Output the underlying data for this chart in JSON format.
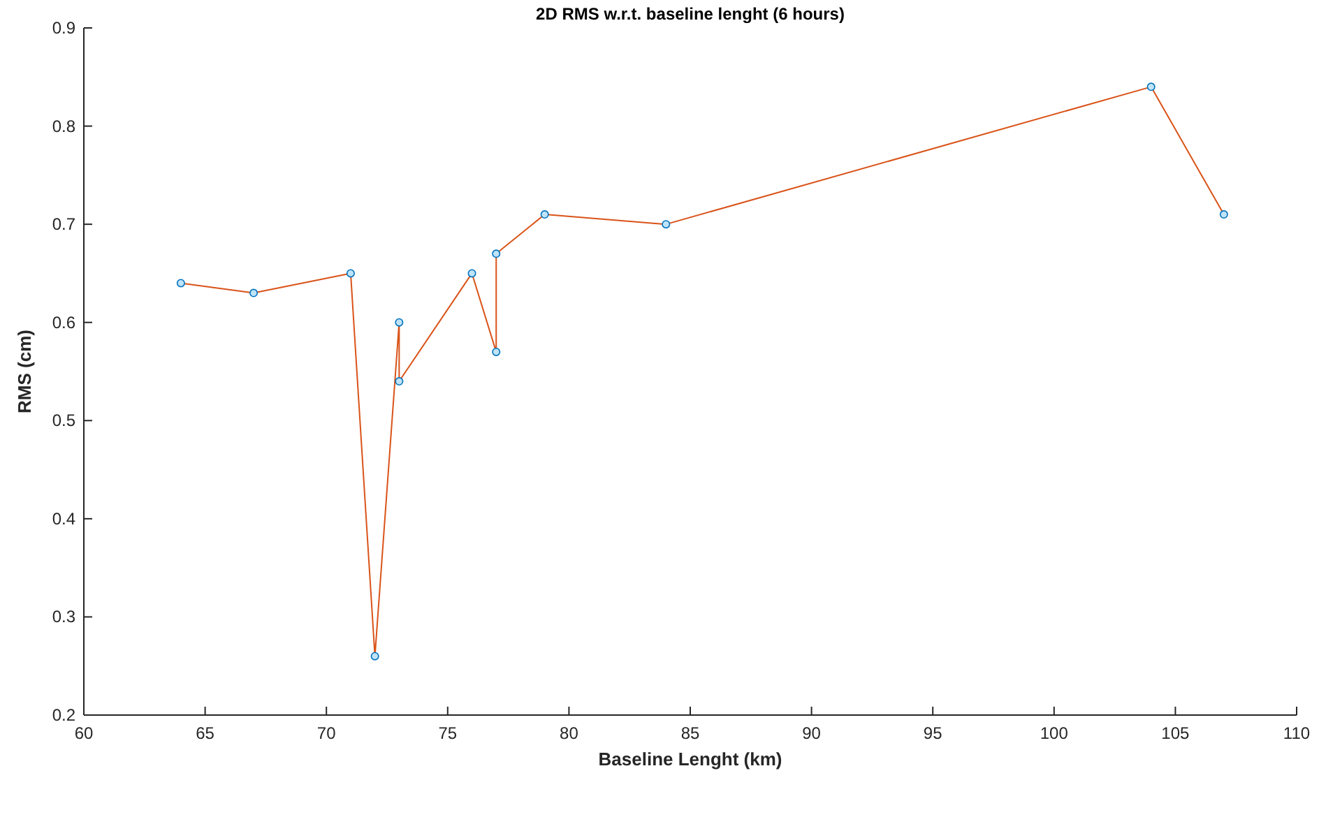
{
  "chart_data": {
    "type": "line",
    "title": "2D RMS w.r.t. baseline lenght (6 hours)",
    "xlabel": "Baseline Lenght (km)",
    "ylabel": "RMS (cm)",
    "x": [
      64,
      67,
      71,
      72,
      73,
      73,
      76,
      77,
      77,
      79,
      84,
      104,
      107
    ],
    "series": [
      {
        "color": "#d95319",
        "values": [
          0.64,
          0.63,
          0.65,
          0.26,
          0.6,
          0.54,
          0.65,
          0.57,
          0.67,
          0.71,
          0.7,
          0.84,
          0.71
        ]
      }
    ],
    "xlim": [
      60,
      110
    ],
    "xticks": [
      60,
      65,
      70,
      75,
      80,
      85,
      90,
      95,
      100,
      105,
      110
    ],
    "ylim": [
      0.2,
      0.9
    ],
    "yticks": [
      0.2,
      0.3,
      0.4,
      0.5,
      0.6,
      0.7,
      0.8,
      0.9
    ],
    "grid": false,
    "marker": "circle",
    "line_style": "solid"
  }
}
